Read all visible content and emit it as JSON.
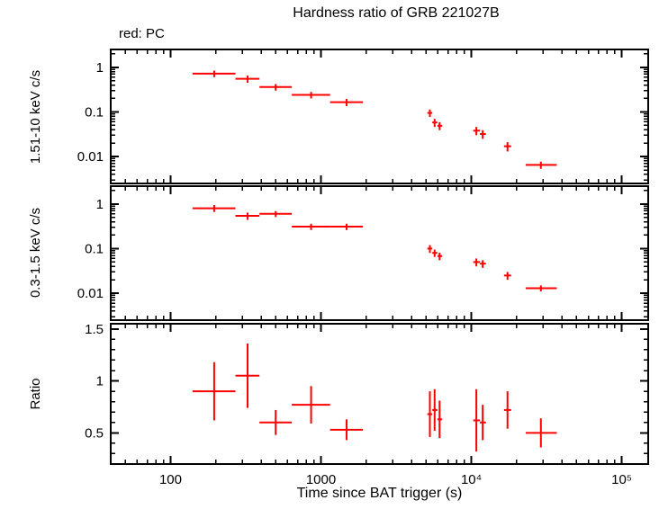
{
  "title": "Hardness ratio of GRB 221027B",
  "legend": "red: PC",
  "colors": {
    "data": "#ff0000",
    "axis": "#000000",
    "background": "#ffffff"
  },
  "chart_data": {
    "type": "scatter",
    "title": "Hardness ratio of GRB 221027B",
    "xlabel": "Time since BAT trigger (s)",
    "legend_note": "red: PC",
    "x_axis": {
      "scale": "log",
      "range": [
        40,
        150000
      ],
      "major_ticks": [
        100,
        1000,
        10000,
        100000
      ],
      "tick_labels": [
        "100",
        "1000",
        "10⁴",
        "10⁵"
      ]
    },
    "panels": [
      {
        "key": "hard",
        "ylabel": "1.51-10 keV c/s",
        "scale": "log",
        "range": [
          0.0025,
          2.5
        ],
        "major_ticks": [
          1,
          0.1,
          0.01
        ],
        "tick_labels": [
          "1",
          "0.1",
          "0.01"
        ]
      },
      {
        "key": "soft",
        "ylabel": "0.3-1.5 keV c/s",
        "scale": "log",
        "range": [
          0.0025,
          2.5
        ],
        "major_ticks": [
          1,
          0.1,
          0.01
        ],
        "tick_labels": [
          "1",
          "0.1",
          "0.01"
        ]
      },
      {
        "key": "ratio",
        "ylabel": "Ratio",
        "scale": "linear",
        "range": [
          0.2,
          1.55
        ],
        "major_ticks": [
          0.5,
          1,
          1.5
        ],
        "tick_labels": [
          "0.5",
          "1",
          "1.5"
        ],
        "minor_step": 0.1
      }
    ],
    "points": [
      {
        "t": 195,
        "tmin": 140,
        "tmax": 270,
        "hard": 0.72,
        "hard_err": 0.12,
        "soft": 0.8,
        "soft_err": 0.14,
        "ratio": 0.9,
        "ratio_err": 0.28
      },
      {
        "t": 325,
        "tmin": 270,
        "tmax": 390,
        "hard": 0.55,
        "hard_err": 0.1,
        "soft": 0.54,
        "soft_err": 0.1,
        "ratio": 1.05,
        "ratio_err": 0.31
      },
      {
        "t": 500,
        "tmin": 390,
        "tmax": 640,
        "hard": 0.36,
        "hard_err": 0.06,
        "soft": 0.6,
        "soft_err": 0.09,
        "ratio": 0.6,
        "ratio_err": 0.12
      },
      {
        "t": 860,
        "tmin": 640,
        "tmax": 1150,
        "hard": 0.24,
        "hard_err": 0.04,
        "soft": 0.31,
        "soft_err": 0.05,
        "ratio": 0.77,
        "ratio_err": 0.18
      },
      {
        "t": 1480,
        "tmin": 1150,
        "tmax": 1900,
        "hard": 0.165,
        "hard_err": 0.03,
        "soft": 0.31,
        "soft_err": 0.05,
        "ratio": 0.53,
        "ratio_err": 0.1
      },
      {
        "t": 5300,
        "tmin": 5100,
        "tmax": 5500,
        "hard": 0.095,
        "hard_err": 0.018,
        "soft": 0.1,
        "soft_err": 0.02,
        "ratio": 0.68,
        "ratio_err": 0.22
      },
      {
        "t": 5700,
        "tmin": 5500,
        "tmax": 5950,
        "hard": 0.058,
        "hard_err": 0.012,
        "soft": 0.08,
        "soft_err": 0.015,
        "ratio": 0.72,
        "ratio_err": 0.2
      },
      {
        "t": 6150,
        "tmin": 5950,
        "tmax": 6400,
        "hard": 0.049,
        "hard_err": 0.01,
        "soft": 0.068,
        "soft_err": 0.013,
        "ratio": 0.63,
        "ratio_err": 0.18
      },
      {
        "t": 10800,
        "tmin": 10300,
        "tmax": 11400,
        "hard": 0.038,
        "hard_err": 0.008,
        "soft": 0.05,
        "soft_err": 0.01,
        "ratio": 0.62,
        "ratio_err": 0.3
      },
      {
        "t": 11900,
        "tmin": 11400,
        "tmax": 12500,
        "hard": 0.032,
        "hard_err": 0.007,
        "soft": 0.046,
        "soft_err": 0.009,
        "ratio": 0.6,
        "ratio_err": 0.17
      },
      {
        "t": 17400,
        "tmin": 16500,
        "tmax": 18400,
        "hard": 0.017,
        "hard_err": 0.004,
        "soft": 0.025,
        "soft_err": 0.005,
        "ratio": 0.72,
        "ratio_err": 0.18
      },
      {
        "t": 29000,
        "tmin": 23000,
        "tmax": 37000,
        "hard": 0.0065,
        "hard_err": 0.0012,
        "soft": 0.013,
        "soft_err": 0.002,
        "ratio": 0.5,
        "ratio_err": 0.14
      }
    ]
  }
}
